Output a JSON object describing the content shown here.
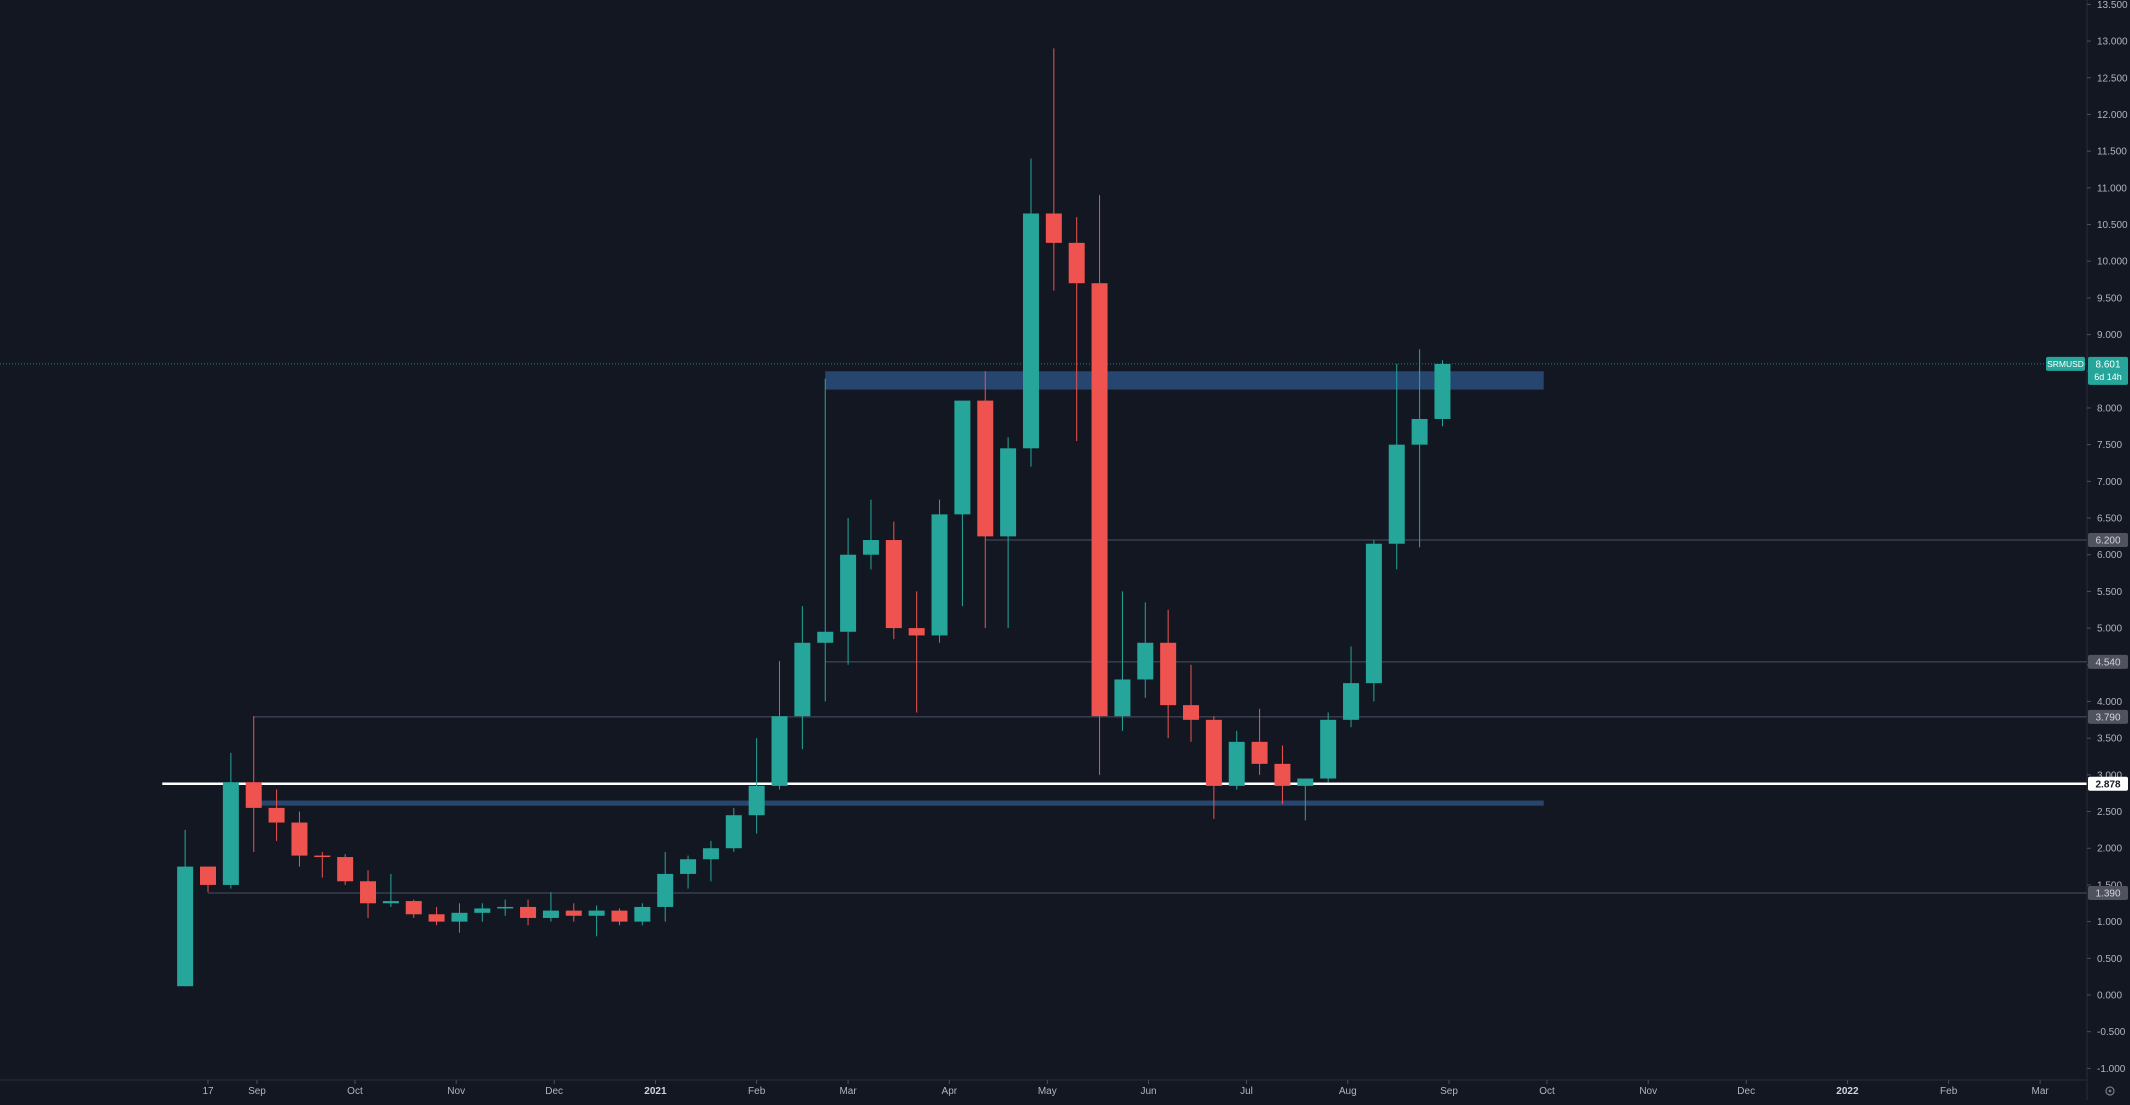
{
  "chart_data": {
    "type": "candlestick",
    "symbol": "SRMUSD",
    "timeframe": "weekly",
    "y_axis": {
      "min": -1.2,
      "max": 13.5,
      "ticks": [
        "-1.000",
        "-0.500",
        "0.000",
        "0.500",
        "1.000",
        "1.500",
        "2.000",
        "2.500",
        "3.000",
        "3.500",
        "4.000",
        "4.500",
        "5.000",
        "5.500",
        "6.000",
        "6.500",
        "7.000",
        "7.500",
        "8.000",
        "8.500",
        "9.000",
        "9.500",
        "10.000",
        "10.500",
        "11.000",
        "11.500",
        "12.000",
        "12.500",
        "13.000",
        "13.500"
      ]
    },
    "x_axis": {
      "start": "2020-08-03",
      "end": "2022-03-31",
      "ticks": [
        {
          "date": "2020-08-17",
          "label": "17",
          "bold": false
        },
        {
          "date": "2020-09-01",
          "label": "Sep",
          "bold": false
        },
        {
          "date": "2020-10-01",
          "label": "Oct",
          "bold": false
        },
        {
          "date": "2020-11-01",
          "label": "Nov",
          "bold": false
        },
        {
          "date": "2020-12-01",
          "label": "Dec",
          "bold": false
        },
        {
          "date": "2021-01-01",
          "label": "2021",
          "bold": true
        },
        {
          "date": "2021-02-01",
          "label": "Feb",
          "bold": false
        },
        {
          "date": "2021-03-01",
          "label": "Mar",
          "bold": false
        },
        {
          "date": "2021-04-01",
          "label": "Apr",
          "bold": false
        },
        {
          "date": "2021-05-01",
          "label": "May",
          "bold": false
        },
        {
          "date": "2021-06-01",
          "label": "Jun",
          "bold": false
        },
        {
          "date": "2021-07-01",
          "label": "Jul",
          "bold": false
        },
        {
          "date": "2021-08-01",
          "label": "Aug",
          "bold": false
        },
        {
          "date": "2021-09-01",
          "label": "Sep",
          "bold": false
        },
        {
          "date": "2021-10-01",
          "label": "Oct",
          "bold": false
        },
        {
          "date": "2021-11-01",
          "label": "Nov",
          "bold": false
        },
        {
          "date": "2021-12-01",
          "label": "Dec",
          "bold": false
        },
        {
          "date": "2022-01-01",
          "label": "2022",
          "bold": true
        },
        {
          "date": "2022-02-01",
          "label": "Feb",
          "bold": false
        },
        {
          "date": "2022-03-01",
          "label": "Mar",
          "bold": false
        }
      ]
    },
    "candles": [
      {
        "date": "2020-08-10",
        "open": 0.12,
        "high": 2.25,
        "low": 0.12,
        "close": 1.75
      },
      {
        "date": "2020-08-17",
        "open": 1.75,
        "high": 1.75,
        "low": 1.4,
        "close": 1.5
      },
      {
        "date": "2020-08-24",
        "open": 1.5,
        "high": 3.3,
        "low": 1.45,
        "close": 2.9
      },
      {
        "date": "2020-08-31",
        "open": 2.9,
        "high": 3.8,
        "low": 1.95,
        "close": 2.55
      },
      {
        "date": "2020-09-07",
        "open": 2.55,
        "high": 2.8,
        "low": 2.1,
        "close": 2.35
      },
      {
        "date": "2020-09-14",
        "open": 2.35,
        "high": 2.5,
        "low": 1.75,
        "close": 1.9
      },
      {
        "date": "2020-09-21",
        "open": 1.9,
        "high": 1.95,
        "low": 1.6,
        "close": 1.88
      },
      {
        "date": "2020-09-28",
        "open": 1.88,
        "high": 1.92,
        "low": 1.5,
        "close": 1.55
      },
      {
        "date": "2020-10-05",
        "open": 1.55,
        "high": 1.7,
        "low": 1.05,
        "close": 1.25
      },
      {
        "date": "2020-10-12",
        "open": 1.25,
        "high": 1.65,
        "low": 1.2,
        "close": 1.28
      },
      {
        "date": "2020-10-19",
        "open": 1.28,
        "high": 1.3,
        "low": 1.05,
        "close": 1.1
      },
      {
        "date": "2020-10-26",
        "open": 1.1,
        "high": 1.2,
        "low": 0.95,
        "close": 1.0
      },
      {
        "date": "2020-11-02",
        "open": 1.0,
        "high": 1.25,
        "low": 0.85,
        "close": 1.12
      },
      {
        "date": "2020-11-09",
        "open": 1.12,
        "high": 1.25,
        "low": 1.0,
        "close": 1.18
      },
      {
        "date": "2020-11-16",
        "open": 1.18,
        "high": 1.3,
        "low": 1.08,
        "close": 1.2
      },
      {
        "date": "2020-11-23",
        "open": 1.2,
        "high": 1.3,
        "low": 0.95,
        "close": 1.05
      },
      {
        "date": "2020-11-30",
        "open": 1.05,
        "high": 1.4,
        "low": 1.0,
        "close": 1.15
      },
      {
        "date": "2020-12-07",
        "open": 1.15,
        "high": 1.25,
        "low": 1.0,
        "close": 1.08
      },
      {
        "date": "2020-12-14",
        "open": 1.08,
        "high": 1.22,
        "low": 0.8,
        "close": 1.15
      },
      {
        "date": "2020-12-21",
        "open": 1.15,
        "high": 1.18,
        "low": 0.95,
        "close": 1.0
      },
      {
        "date": "2020-12-28",
        "open": 1.0,
        "high": 1.25,
        "low": 0.95,
        "close": 1.2
      },
      {
        "date": "2021-01-04",
        "open": 1.2,
        "high": 1.95,
        "low": 1.0,
        "close": 1.65
      },
      {
        "date": "2021-01-11",
        "open": 1.65,
        "high": 1.9,
        "low": 1.45,
        "close": 1.85
      },
      {
        "date": "2021-01-18",
        "open": 1.85,
        "high": 2.1,
        "low": 1.55,
        "close": 2.0
      },
      {
        "date": "2021-01-25",
        "open": 2.0,
        "high": 2.55,
        "low": 1.95,
        "close": 2.45
      },
      {
        "date": "2021-02-01",
        "open": 2.45,
        "high": 3.5,
        "low": 2.2,
        "close": 2.85
      },
      {
        "date": "2021-02-08",
        "open": 2.85,
        "high": 4.55,
        "low": 2.8,
        "close": 3.8
      },
      {
        "date": "2021-02-15",
        "open": 3.8,
        "high": 5.3,
        "low": 3.35,
        "close": 4.8
      },
      {
        "date": "2021-02-22",
        "open": 4.8,
        "high": 8.4,
        "low": 4.0,
        "close": 4.95
      },
      {
        "date": "2021-03-01",
        "open": 4.95,
        "high": 6.5,
        "low": 4.5,
        "close": 6.0
      },
      {
        "date": "2021-03-08",
        "open": 6.0,
        "high": 6.75,
        "low": 5.8,
        "close": 6.2
      },
      {
        "date": "2021-03-15",
        "open": 6.2,
        "high": 6.45,
        "low": 4.85,
        "close": 5.0
      },
      {
        "date": "2021-03-22",
        "open": 5.0,
        "high": 5.5,
        "low": 3.85,
        "close": 4.9
      },
      {
        "date": "2021-03-29",
        "open": 4.9,
        "high": 6.75,
        "low": 4.8,
        "close": 6.55
      },
      {
        "date": "2021-04-05",
        "open": 6.55,
        "high": 8.1,
        "low": 5.3,
        "close": 8.1
      },
      {
        "date": "2021-04-12",
        "open": 8.1,
        "high": 8.5,
        "low": 5.0,
        "close": 6.25
      },
      {
        "date": "2021-04-19",
        "open": 6.25,
        "high": 7.6,
        "low": 5.0,
        "close": 7.45
      },
      {
        "date": "2021-04-26",
        "open": 7.45,
        "high": 11.4,
        "low": 7.2,
        "close": 10.65
      },
      {
        "date": "2021-05-03",
        "open": 10.65,
        "high": 12.9,
        "low": 9.6,
        "close": 10.25
      },
      {
        "date": "2021-05-10",
        "open": 10.25,
        "high": 10.6,
        "low": 7.55,
        "close": 9.7
      },
      {
        "date": "2021-05-17",
        "open": 9.7,
        "high": 10.9,
        "low": 3.0,
        "close": 3.8
      },
      {
        "date": "2021-05-24",
        "open": 3.8,
        "high": 5.5,
        "low": 3.6,
        "close": 4.3
      },
      {
        "date": "2021-05-31",
        "open": 4.3,
        "high": 5.35,
        "low": 4.05,
        "close": 4.8
      },
      {
        "date": "2021-06-07",
        "open": 4.8,
        "high": 5.25,
        "low": 3.5,
        "close": 3.95
      },
      {
        "date": "2021-06-14",
        "open": 3.95,
        "high": 4.5,
        "low": 3.45,
        "close": 3.75
      },
      {
        "date": "2021-06-21",
        "open": 3.75,
        "high": 3.8,
        "low": 2.4,
        "close": 2.85
      },
      {
        "date": "2021-06-28",
        "open": 2.85,
        "high": 3.6,
        "low": 2.8,
        "close": 3.45
      },
      {
        "date": "2021-07-05",
        "open": 3.45,
        "high": 3.9,
        "low": 3.0,
        "close": 3.15
      },
      {
        "date": "2021-07-12",
        "open": 3.15,
        "high": 3.4,
        "low": 2.6,
        "close": 2.85
      },
      {
        "date": "2021-07-19",
        "open": 2.85,
        "high": 2.95,
        "low": 2.38,
        "close": 2.95
      },
      {
        "date": "2021-07-26",
        "open": 2.95,
        "high": 3.85,
        "low": 2.9,
        "close": 3.75
      },
      {
        "date": "2021-08-02",
        "open": 3.75,
        "high": 4.75,
        "low": 3.65,
        "close": 4.25
      },
      {
        "date": "2021-08-09",
        "open": 4.25,
        "high": 6.2,
        "low": 4.0,
        "close": 6.15
      },
      {
        "date": "2021-08-16",
        "open": 6.15,
        "high": 8.6,
        "low": 5.8,
        "close": 7.5
      },
      {
        "date": "2021-08-23",
        "open": 7.5,
        "high": 8.8,
        "low": 6.1,
        "close": 7.85
      },
      {
        "date": "2021-08-30",
        "open": 7.85,
        "high": 8.65,
        "low": 7.75,
        "close": 8.6
      }
    ],
    "zones": [
      {
        "start": "2021-02-22",
        "end": "2021-09-30",
        "low": 8.25,
        "high": 8.5
      },
      {
        "start": "2020-08-31",
        "end": "2021-09-30",
        "low": 2.58,
        "high": 2.65
      }
    ],
    "horizontal_lines": [
      {
        "price": 6.2,
        "label": "6.200",
        "start": "2021-04-12",
        "style": "thin"
      },
      {
        "price": 4.54,
        "label": "4.540",
        "start": "2021-02-22",
        "style": "thin"
      },
      {
        "price": 3.79,
        "label": "3.790",
        "start": "2020-08-31",
        "style": "thin"
      },
      {
        "price": 1.39,
        "label": "1.390",
        "start": "2020-08-17",
        "style": "thin"
      },
      {
        "price": 2.878,
        "label": "2.878",
        "start": "2020-08-03",
        "style": "bold"
      }
    ],
    "last_price": {
      "value": 8.601,
      "label": "8.601",
      "symbol": "SRMUSD",
      "countdown": "6d 14h"
    },
    "colors": {
      "background": "#131722",
      "up": "#26a69a",
      "down": "#ef5350",
      "zone": "#2a4e7d",
      "level_line": "#4a5066",
      "support_line": "#ffffff",
      "axis_text": "#b2b5be"
    },
    "grid": false
  }
}
